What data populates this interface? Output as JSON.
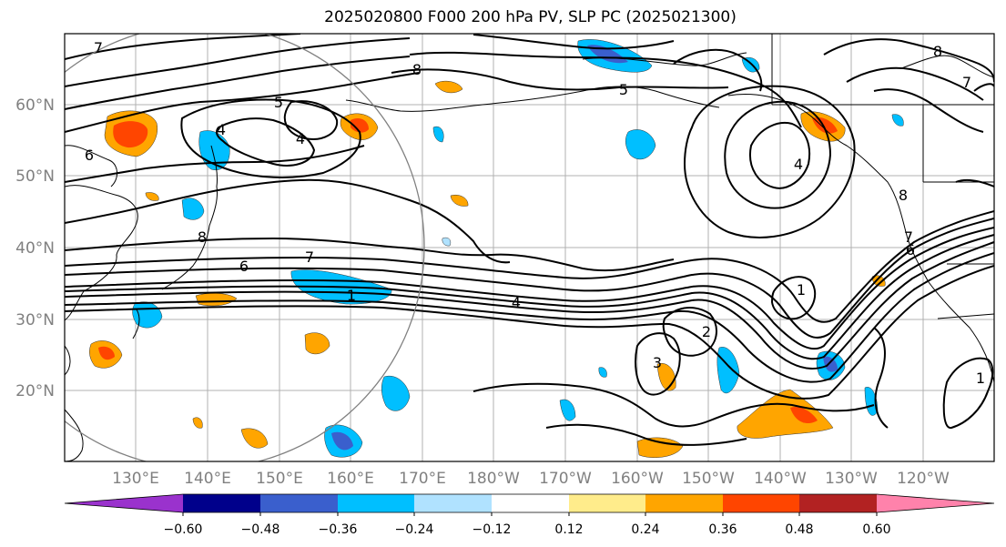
{
  "title": "2025020800 F000 200 hPa PV, SLP PC (2025021300)",
  "lat_labels": [
    "60°N",
    "50°N",
    "40°N",
    "30°N",
    "20°N"
  ],
  "lon_labels": [
    "130°E",
    "140°E",
    "150°E",
    "160°E",
    "170°E",
    "180°W",
    "170°W",
    "160°W",
    "150°W",
    "140°W",
    "130°W",
    "120°W"
  ],
  "colorbar": {
    "ticks": [
      "−0.60",
      "−0.48",
      "−0.36",
      "−0.24",
      "−0.12",
      "0.12",
      "0.24",
      "0.36",
      "0.48",
      "0.60"
    ],
    "colors": [
      "#9a32cd",
      "#00008b",
      "#3a5fcd",
      "#00bfff",
      "#b0e2ff",
      "#ffffff",
      "#ffec8b",
      "#ffa500",
      "#ff4500",
      "#b22222",
      "#ff82ab"
    ]
  },
  "contour_labels": [
    "7",
    "8",
    "5",
    "4",
    "6",
    "8",
    "7",
    "6",
    "1",
    "4",
    "2",
    "3",
    "4",
    "7",
    "6",
    "1",
    "7",
    "8",
    "5",
    "4",
    "8",
    "1"
  ]
}
